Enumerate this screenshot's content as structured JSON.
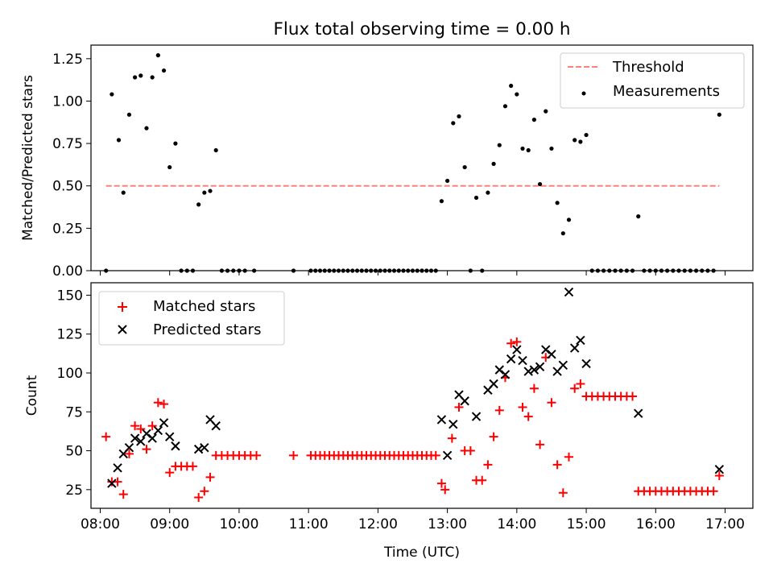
{
  "chart_data": [
    {
      "type": "scatter",
      "title": "Flux total observing time = 0.00 h",
      "xlabel": "",
      "ylabel": "Matched/Predicted stars",
      "xlim": [
        "07:52",
        "17:24"
      ],
      "ylim": [
        0,
        1.33
      ],
      "yticks": [
        0.0,
        0.25,
        0.5,
        0.75,
        1.0,
        1.25
      ],
      "ytick_labels": [
        "0.00",
        "0.25",
        "0.50",
        "0.75",
        "1.00",
        "1.25"
      ],
      "xtick_labels": [
        "08:00",
        "09:00",
        "10:00",
        "11:00",
        "12:00",
        "13:00",
        "14:00",
        "15:00",
        "16:00",
        "17:00"
      ],
      "legend_position": "top-right",
      "threshold": {
        "name": "Threshold",
        "value": 0.5,
        "x_start": "08:05",
        "x_end": "16:55",
        "color": "#ff7f7f"
      },
      "series": [
        {
          "name": "Measurements",
          "color": "#000000",
          "points": [
            [
              "08:05",
              0.0
            ],
            [
              "08:10",
              1.04
            ],
            [
              "08:16",
              0.77
            ],
            [
              "08:20",
              0.46
            ],
            [
              "08:25",
              0.92
            ],
            [
              "08:30",
              1.14
            ],
            [
              "08:35",
              1.15
            ],
            [
              "08:40",
              0.84
            ],
            [
              "08:45",
              1.14
            ],
            [
              "08:50",
              1.27
            ],
            [
              "08:55",
              1.18
            ],
            [
              "09:00",
              0.61
            ],
            [
              "09:05",
              0.75
            ],
            [
              "09:10",
              0.0
            ],
            [
              "09:15",
              0.0
            ],
            [
              "09:20",
              0.0
            ],
            [
              "09:25",
              0.39
            ],
            [
              "09:30",
              0.46
            ],
            [
              "09:35",
              0.47
            ],
            [
              "09:40",
              0.71
            ],
            [
              "09:45",
              0.0
            ],
            [
              "09:50",
              0.0
            ],
            [
              "09:55",
              0.0
            ],
            [
              "10:00",
              0.0
            ],
            [
              "10:05",
              0.0
            ],
            [
              "10:13",
              0.0
            ],
            [
              "10:47",
              0.0
            ],
            [
              "11:02",
              0.0
            ],
            [
              "11:06",
              0.0
            ],
            [
              "11:10",
              0.0
            ],
            [
              "11:14",
              0.0
            ],
            [
              "11:18",
              0.0
            ],
            [
              "11:22",
              0.0
            ],
            [
              "11:26",
              0.0
            ],
            [
              "11:30",
              0.0
            ],
            [
              "11:34",
              0.0
            ],
            [
              "11:38",
              0.0
            ],
            [
              "11:42",
              0.0
            ],
            [
              "11:46",
              0.0
            ],
            [
              "11:50",
              0.0
            ],
            [
              "11:54",
              0.0
            ],
            [
              "11:58",
              0.0
            ],
            [
              "12:02",
              0.0
            ],
            [
              "12:06",
              0.0
            ],
            [
              "12:10",
              0.0
            ],
            [
              "12:14",
              0.0
            ],
            [
              "12:18",
              0.0
            ],
            [
              "12:22",
              0.0
            ],
            [
              "12:26",
              0.0
            ],
            [
              "12:30",
              0.0
            ],
            [
              "12:34",
              0.0
            ],
            [
              "12:38",
              0.0
            ],
            [
              "12:42",
              0.0
            ],
            [
              "12:46",
              0.0
            ],
            [
              "12:50",
              0.0
            ],
            [
              "12:55",
              0.41
            ],
            [
              "13:00",
              0.53
            ],
            [
              "13:05",
              0.87
            ],
            [
              "13:10",
              0.91
            ],
            [
              "13:15",
              0.61
            ],
            [
              "13:20",
              0.0
            ],
            [
              "13:25",
              0.43
            ],
            [
              "13:30",
              0.0
            ],
            [
              "13:35",
              0.46
            ],
            [
              "13:40",
              0.63
            ],
            [
              "13:45",
              0.74
            ],
            [
              "13:50",
              0.97
            ],
            [
              "13:55",
              1.09
            ],
            [
              "14:00",
              1.04
            ],
            [
              "14:05",
              0.72
            ],
            [
              "14:10",
              0.71
            ],
            [
              "14:15",
              0.89
            ],
            [
              "14:20",
              0.51
            ],
            [
              "14:25",
              0.94
            ],
            [
              "14:30",
              0.72
            ],
            [
              "14:35",
              0.4
            ],
            [
              "14:40",
              0.22
            ],
            [
              "14:45",
              0.3
            ],
            [
              "14:50",
              0.77
            ],
            [
              "14:55",
              0.76
            ],
            [
              "15:00",
              0.8
            ],
            [
              "15:05",
              0.0
            ],
            [
              "15:10",
              0.0
            ],
            [
              "15:15",
              0.0
            ],
            [
              "15:20",
              0.0
            ],
            [
              "15:25",
              0.0
            ],
            [
              "15:30",
              0.0
            ],
            [
              "15:35",
              0.0
            ],
            [
              "15:40",
              0.0
            ],
            [
              "15:45",
              0.32
            ],
            [
              "15:50",
              0.0
            ],
            [
              "15:55",
              0.0
            ],
            [
              "16:00",
              0.0
            ],
            [
              "16:05",
              0.0
            ],
            [
              "16:10",
              0.0
            ],
            [
              "16:15",
              0.0
            ],
            [
              "16:20",
              0.0
            ],
            [
              "16:25",
              0.0
            ],
            [
              "16:30",
              0.0
            ],
            [
              "16:35",
              0.0
            ],
            [
              "16:40",
              0.0
            ],
            [
              "16:45",
              0.0
            ],
            [
              "16:50",
              0.0
            ],
            [
              "16:55",
              0.92
            ]
          ]
        }
      ]
    },
    {
      "type": "scatter",
      "title": "",
      "xlabel": "Time (UTC)",
      "ylabel": "Count",
      "xlim": [
        "07:52",
        "17:24"
      ],
      "ylim": [
        13,
        158
      ],
      "yticks": [
        25,
        50,
        75,
        100,
        125,
        150
      ],
      "ytick_labels": [
        "25",
        "50",
        "75",
        "100",
        "125",
        "150"
      ],
      "xtick_labels": [
        "08:00",
        "09:00",
        "10:00",
        "11:00",
        "12:00",
        "13:00",
        "14:00",
        "15:00",
        "16:00",
        "17:00"
      ],
      "legend_position": "top-left",
      "series": [
        {
          "name": "Matched stars",
          "marker": "plus",
          "color": "#ff0000",
          "points": [
            [
              "08:05",
              59
            ],
            [
              "08:10",
              30
            ],
            [
              "08:15",
              30
            ],
            [
              "08:20",
              22
            ],
            [
              "08:25",
              48
            ],
            [
              "08:30",
              66
            ],
            [
              "08:35",
              64
            ],
            [
              "08:40",
              51
            ],
            [
              "08:45",
              66
            ],
            [
              "08:50",
              81
            ],
            [
              "08:55",
              80
            ],
            [
              "09:00",
              36
            ],
            [
              "09:05",
              40
            ],
            [
              "09:10",
              40
            ],
            [
              "09:15",
              40
            ],
            [
              "09:20",
              40
            ],
            [
              "09:25",
              20
            ],
            [
              "09:30",
              24
            ],
            [
              "09:35",
              33
            ],
            [
              "09:40",
              47
            ],
            [
              "09:45",
              47
            ],
            [
              "09:50",
              47
            ],
            [
              "09:55",
              47
            ],
            [
              "10:00",
              47
            ],
            [
              "10:05",
              47
            ],
            [
              "10:10",
              47
            ],
            [
              "10:15",
              47
            ],
            [
              "10:47",
              47
            ],
            [
              "11:02",
              47
            ],
            [
              "11:06",
              47
            ],
            [
              "11:10",
              47
            ],
            [
              "11:14",
              47
            ],
            [
              "11:18",
              47
            ],
            [
              "11:22",
              47
            ],
            [
              "11:26",
              47
            ],
            [
              "11:30",
              47
            ],
            [
              "11:34",
              47
            ],
            [
              "11:38",
              47
            ],
            [
              "11:42",
              47
            ],
            [
              "11:46",
              47
            ],
            [
              "11:50",
              47
            ],
            [
              "11:54",
              47
            ],
            [
              "11:58",
              47
            ],
            [
              "12:02",
              47
            ],
            [
              "12:06",
              47
            ],
            [
              "12:10",
              47
            ],
            [
              "12:14",
              47
            ],
            [
              "12:18",
              47
            ],
            [
              "12:22",
              47
            ],
            [
              "12:26",
              47
            ],
            [
              "12:30",
              47
            ],
            [
              "12:34",
              47
            ],
            [
              "12:38",
              47
            ],
            [
              "12:42",
              47
            ],
            [
              "12:46",
              47
            ],
            [
              "12:50",
              47
            ],
            [
              "12:55",
              29
            ],
            [
              "12:58",
              25
            ],
            [
              "13:04",
              58
            ],
            [
              "13:10",
              78
            ],
            [
              "13:15",
              50
            ],
            [
              "13:20",
              50
            ],
            [
              "13:25",
              31
            ],
            [
              "13:30",
              31
            ],
            [
              "13:35",
              41
            ],
            [
              "13:40",
              59
            ],
            [
              "13:45",
              76
            ],
            [
              "13:50",
              97
            ],
            [
              "13:55",
              119
            ],
            [
              "14:00",
              120
            ],
            [
              "14:05",
              78
            ],
            [
              "14:10",
              72
            ],
            [
              "14:15",
              90
            ],
            [
              "14:20",
              54
            ],
            [
              "14:25",
              110
            ],
            [
              "14:30",
              81
            ],
            [
              "14:35",
              41
            ],
            [
              "14:40",
              23
            ],
            [
              "14:45",
              46
            ],
            [
              "14:50",
              90
            ],
            [
              "14:55",
              93
            ],
            [
              "15:00",
              85
            ],
            [
              "15:05",
              85
            ],
            [
              "15:10",
              85
            ],
            [
              "15:15",
              85
            ],
            [
              "15:20",
              85
            ],
            [
              "15:25",
              85
            ],
            [
              "15:30",
              85
            ],
            [
              "15:35",
              85
            ],
            [
              "15:40",
              85
            ],
            [
              "15:45",
              24
            ],
            [
              "15:50",
              24
            ],
            [
              "15:55",
              24
            ],
            [
              "16:00",
              24
            ],
            [
              "16:05",
              24
            ],
            [
              "16:10",
              24
            ],
            [
              "16:15",
              24
            ],
            [
              "16:20",
              24
            ],
            [
              "16:25",
              24
            ],
            [
              "16:30",
              24
            ],
            [
              "16:35",
              24
            ],
            [
              "16:40",
              24
            ],
            [
              "16:45",
              24
            ],
            [
              "16:50",
              24
            ],
            [
              "16:55",
              34
            ]
          ]
        },
        {
          "name": "Predicted stars",
          "marker": "x",
          "color": "#000000",
          "points": [
            [
              "08:10",
              29
            ],
            [
              "08:15",
              39
            ],
            [
              "08:20",
              48
            ],
            [
              "08:25",
              52
            ],
            [
              "08:30",
              58
            ],
            [
              "08:35",
              56
            ],
            [
              "08:40",
              61
            ],
            [
              "08:45",
              58
            ],
            [
              "08:50",
              63
            ],
            [
              "08:55",
              68
            ],
            [
              "09:00",
              59
            ],
            [
              "09:05",
              53
            ],
            [
              "09:25",
              51
            ],
            [
              "09:30",
              52
            ],
            [
              "09:35",
              70
            ],
            [
              "09:40",
              66
            ],
            [
              "12:55",
              70
            ],
            [
              "13:00",
              47
            ],
            [
              "13:05",
              67
            ],
            [
              "13:10",
              86
            ],
            [
              "13:15",
              82
            ],
            [
              "13:25",
              72
            ],
            [
              "13:35",
              89
            ],
            [
              "13:40",
              93
            ],
            [
              "13:45",
              102
            ],
            [
              "13:50",
              99
            ],
            [
              "13:55",
              109
            ],
            [
              "14:00",
              115
            ],
            [
              "14:05",
              108
            ],
            [
              "14:10",
              101
            ],
            [
              "14:15",
              102
            ],
            [
              "14:20",
              104
            ],
            [
              "14:25",
              115
            ],
            [
              "14:30",
              112
            ],
            [
              "14:35",
              101
            ],
            [
              "14:40",
              105
            ],
            [
              "14:45",
              152
            ],
            [
              "14:50",
              116
            ],
            [
              "14:55",
              121
            ],
            [
              "15:00",
              106
            ],
            [
              "15:45",
              74
            ],
            [
              "16:55",
              38
            ]
          ]
        }
      ]
    }
  ]
}
